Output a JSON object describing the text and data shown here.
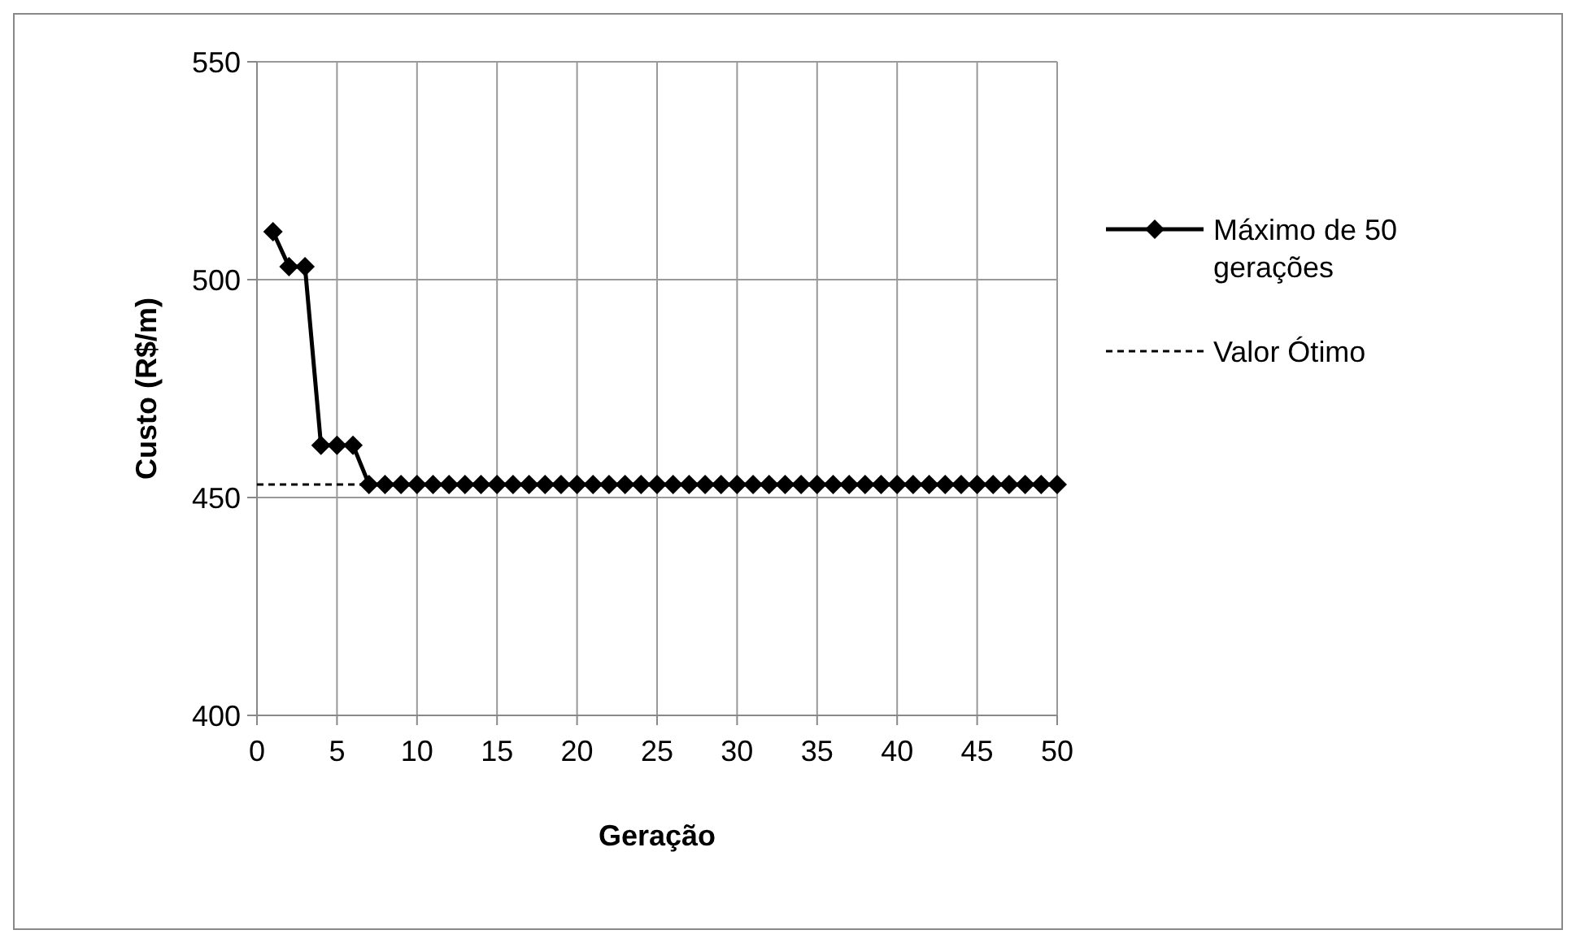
{
  "chart_data": {
    "type": "line",
    "xlabel": "Geração",
    "ylabel": "Custo (R$/m)",
    "x": [
      1,
      2,
      3,
      4,
      5,
      6,
      7,
      8,
      9,
      10,
      11,
      12,
      13,
      14,
      15,
      16,
      17,
      18,
      19,
      20,
      21,
      22,
      23,
      24,
      25,
      26,
      27,
      28,
      29,
      30,
      31,
      32,
      33,
      34,
      35,
      36,
      37,
      38,
      39,
      40,
      41,
      42,
      43,
      44,
      45,
      46,
      47,
      48,
      49,
      50
    ],
    "series": [
      {
        "name": "Máximo de 50 gerações",
        "color": "#000000",
        "marker": "diamond",
        "line_style": "solid",
        "values": [
          511,
          503,
          503,
          462,
          462,
          462,
          453,
          453,
          453,
          453,
          453,
          453,
          453,
          453,
          453,
          453,
          453,
          453,
          453,
          453,
          453,
          453,
          453,
          453,
          453,
          453,
          453,
          453,
          453,
          453,
          453,
          453,
          453,
          453,
          453,
          453,
          453,
          453,
          453,
          453,
          453,
          453,
          453,
          453,
          453,
          453,
          453,
          453,
          453,
          453
        ]
      },
      {
        "name": "Valor Ótimo",
        "color": "#000000",
        "marker": "none",
        "line_style": "dashed",
        "x": [
          0,
          7
        ],
        "values": [
          453,
          453
        ]
      }
    ],
    "xlim": [
      0,
      50
    ],
    "xticks": [
      0,
      5,
      10,
      15,
      20,
      25,
      30,
      35,
      40,
      45,
      50
    ],
    "ylim": [
      400,
      550
    ],
    "yticks": [
      400,
      450,
      500,
      550
    ],
    "grid": true,
    "legend": "right"
  }
}
